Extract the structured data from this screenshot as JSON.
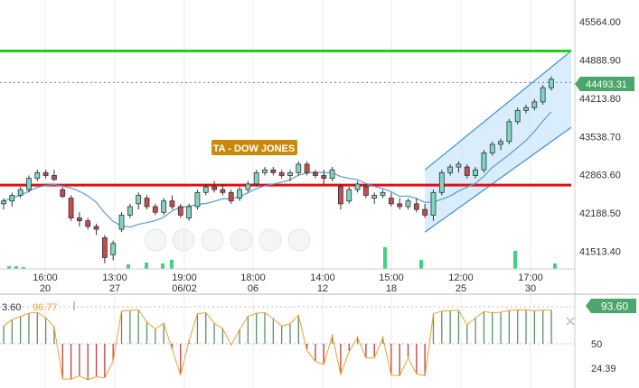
{
  "ta_label": "TA - DOW JONES",
  "current_price": "44493.31",
  "colors": {
    "up": "#7ed6c3",
    "down": "#c94b4b",
    "resistance": "#22cc22",
    "support": "#e01010",
    "ma": "#5b9bd5",
    "channel": "#3a8fd8",
    "channel_fill": "#cfe8fb",
    "badge_green": "#4aa66a",
    "ta_bg": "#c98a0c",
    "ind_line": "#f0a030",
    "bar_up": "#5e8f6a",
    "bar_down": "#c23b3b"
  },
  "price_axis": [
    "45564.00",
    "44888.90",
    "44213.80",
    "43538.70",
    "42863.60",
    "42188.50",
    "41513.40"
  ],
  "time_axis": [
    {
      "top": "16:00",
      "bottom": "20"
    },
    {
      "top": "13:00",
      "bottom": "27"
    },
    {
      "top": "19:00",
      "bottom": "06/02"
    },
    {
      "top": "18:00",
      "bottom": "06"
    },
    {
      "top": "14:00",
      "bottom": "12"
    },
    {
      "top": "15:00",
      "bottom": "18"
    },
    {
      "top": "12:00",
      "bottom": "25"
    },
    {
      "top": "17:00",
      "bottom": "30"
    }
  ],
  "indicator": {
    "left_value_1": "3.60",
    "left_value_2": "96.77",
    "current": "93.60",
    "levels": [
      "50",
      "24.39"
    ]
  },
  "chart_data": {
    "type": "candlestick",
    "resistance": 45050,
    "support": 42680,
    "ylim": [
      41200,
      45950
    ],
    "candles": [
      [
        42350,
        42450,
        42250,
        42400
      ],
      [
        42400,
        42550,
        42300,
        42500
      ],
      [
        42500,
        42650,
        42450,
        42600
      ],
      [
        42600,
        42850,
        42550,
        42800
      ],
      [
        42800,
        42950,
        42750,
        42900
      ],
      [
        42900,
        42950,
        42800,
        42850
      ],
      [
        42850,
        42950,
        42750,
        42780
      ],
      [
        42600,
        42650,
        42450,
        42480
      ],
      [
        42450,
        42500,
        42050,
        42100
      ],
      [
        42100,
        42200,
        41950,
        42050
      ],
      [
        42050,
        42100,
        41900,
        41950
      ],
      [
        41950,
        42000,
        41800,
        41900
      ],
      [
        41750,
        41800,
        41300,
        41400
      ],
      [
        41450,
        41700,
        41350,
        41650
      ],
      [
        41900,
        42200,
        41850,
        42150
      ],
      [
        42150,
        42350,
        42100,
        42300
      ],
      [
        42350,
        42550,
        42250,
        42500
      ],
      [
        42450,
        42500,
        42250,
        42300
      ],
      [
        42300,
        42350,
        42150,
        42200
      ],
      [
        42200,
        42450,
        42150,
        42400
      ],
      [
        42400,
        42500,
        42250,
        42300
      ],
      [
        42300,
        42350,
        42100,
        42150
      ],
      [
        42100,
        42350,
        42050,
        42300
      ],
      [
        42300,
        42600,
        42250,
        42550
      ],
      [
        42550,
        42700,
        42500,
        42650
      ],
      [
        42650,
        42750,
        42550,
        42600
      ],
      [
        42600,
        42700,
        42500,
        42550
      ],
      [
        42550,
        42600,
        42350,
        42400
      ],
      [
        42450,
        42650,
        42400,
        42600
      ],
      [
        42600,
        42750,
        42550,
        42700
      ],
      [
        42700,
        42950,
        42650,
        42900
      ],
      [
        42900,
        43000,
        42850,
        42950
      ],
      [
        42950,
        43000,
        42850,
        42900
      ],
      [
        42900,
        42950,
        42800,
        42850
      ],
      [
        42850,
        42950,
        42750,
        42900
      ],
      [
        42900,
        43100,
        42850,
        43050
      ],
      [
        43050,
        43100,
        42850,
        42900
      ],
      [
        42900,
        42950,
        42800,
        42850
      ],
      [
        42850,
        42950,
        42700,
        42800
      ],
      [
        42800,
        43000,
        42750,
        42950
      ],
      [
        42650,
        42700,
        42250,
        42350
      ],
      [
        42400,
        42650,
        42350,
        42600
      ],
      [
        42600,
        42750,
        42550,
        42700
      ],
      [
        42650,
        42700,
        42450,
        42500
      ],
      [
        42450,
        42550,
        42350,
        42500
      ],
      [
        42500,
        42600,
        42450,
        42550
      ],
      [
        42450,
        42550,
        42300,
        42350
      ],
      [
        42350,
        42450,
        42250,
        42300
      ],
      [
        42300,
        42450,
        42250,
        42400
      ],
      [
        42350,
        42450,
        42200,
        42250
      ],
      [
        42250,
        42350,
        42100,
        42150
      ],
      [
        42150,
        42600,
        42050,
        42550
      ],
      [
        42550,
        42950,
        42500,
        42900
      ],
      [
        42900,
        43050,
        42850,
        43000
      ],
      [
        43000,
        43100,
        42900,
        43050
      ],
      [
        43000,
        43050,
        42800,
        42850
      ],
      [
        42850,
        43000,
        42800,
        42950
      ],
      [
        42950,
        43300,
        42900,
        43250
      ],
      [
        43250,
        43450,
        43200,
        43400
      ],
      [
        43400,
        43500,
        43300,
        43450
      ],
      [
        43450,
        43850,
        43400,
        43800
      ],
      [
        43800,
        44050,
        43750,
        44000
      ],
      [
        44000,
        44100,
        43950,
        44050
      ],
      [
        44050,
        44200,
        44000,
        44150
      ],
      [
        44150,
        44450,
        44100,
        44400
      ],
      [
        44400,
        44600,
        44350,
        44550
      ]
    ]
  }
}
